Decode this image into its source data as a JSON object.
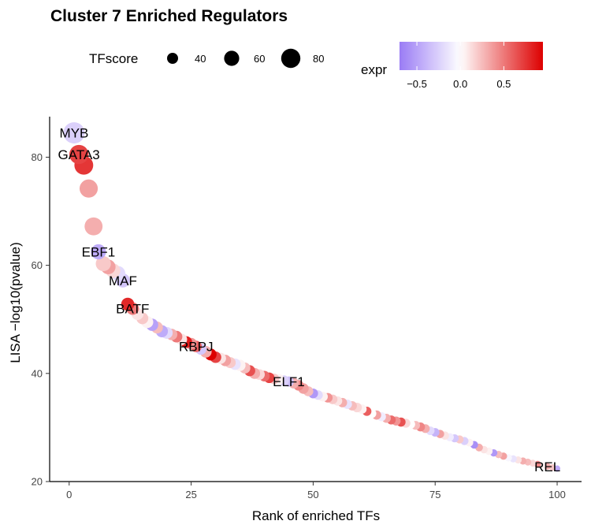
{
  "chart_data": {
    "type": "scatter",
    "title": "Cluster 7 Enriched Regulators",
    "xlabel": "Rank of enriched TFs",
    "ylabel": "LISA −log10(pvalue)",
    "xlim": [
      -4,
      105
    ],
    "ylim": [
      20,
      87.5
    ],
    "xticks": [
      0,
      25,
      50,
      75,
      100
    ],
    "yticks": [
      20,
      40,
      60,
      80
    ],
    "grid": false,
    "size_legend": {
      "title": "TFscore",
      "values": [
        40,
        60,
        80
      ]
    },
    "color_legend": {
      "title": "expr",
      "ticks": [
        -0.5,
        0.0,
        0.5
      ],
      "tick_labels": [
        "−0.5",
        "0.0",
        "0.5"
      ],
      "range": [
        -0.7,
        0.95
      ],
      "low_color": "#9a7cf5",
      "mid_color": "#ffffff",
      "high_color": "#dd0000"
    },
    "points": [
      {
        "rank": 1,
        "value": 84.5,
        "tfscore": 90,
        "expr": -0.25,
        "label": "MYB"
      },
      {
        "rank": 2,
        "value": 80.5,
        "tfscore": 80,
        "expr": 0.7,
        "label": "GATA3"
      },
      {
        "rank": 3,
        "value": 78.5,
        "tfscore": 78,
        "expr": 0.75
      },
      {
        "rank": 4,
        "value": 74.2,
        "tfscore": 75,
        "expr": 0.35
      },
      {
        "rank": 5,
        "value": 67.2,
        "tfscore": 74,
        "expr": 0.3
      },
      {
        "rank": 6,
        "value": 62.5,
        "tfscore": 60,
        "expr": -0.45,
        "label": "EBF1"
      },
      {
        "rank": 7,
        "value": 60.3,
        "tfscore": 60,
        "expr": 0.2
      },
      {
        "rank": 8,
        "value": 59.7,
        "tfscore": 58,
        "expr": 0.35
      },
      {
        "rank": 9,
        "value": 59.0,
        "tfscore": 57,
        "expr": 0.15
      },
      {
        "rank": 10,
        "value": 58.5,
        "tfscore": 58,
        "expr": -0.2
      },
      {
        "rank": 11,
        "value": 57.2,
        "tfscore": 55,
        "expr": -0.3,
        "label": "MAF"
      },
      {
        "rank": 12,
        "value": 52.8,
        "tfscore": 50,
        "expr": 0.8
      },
      {
        "rank": 13,
        "value": 52.0,
        "tfscore": 48,
        "expr": 0.5,
        "label": "BATF"
      },
      {
        "rank": 14,
        "value": 51.0,
        "tfscore": 45,
        "expr": 0.1
      },
      {
        "rank": 15,
        "value": 50.2,
        "tfscore": 44,
        "expr": 0.2
      },
      {
        "rank": 16,
        "value": 49.5,
        "tfscore": 45,
        "expr": 0.05
      },
      {
        "rank": 17,
        "value": 49.0,
        "tfscore": 46,
        "expr": -0.5
      },
      {
        "rank": 18,
        "value": 48.5,
        "tfscore": 44,
        "expr": 0.25
      },
      {
        "rank": 19,
        "value": 47.8,
        "tfscore": 45,
        "expr": -0.45
      },
      {
        "rank": 20,
        "value": 47.5,
        "tfscore": 44,
        "expr": -0.2
      },
      {
        "rank": 21,
        "value": 47.2,
        "tfscore": 42,
        "expr": 0.3
      },
      {
        "rank": 22,
        "value": 46.8,
        "tfscore": 43,
        "expr": 0.5
      },
      {
        "rank": 23,
        "value": 46.3,
        "tfscore": 42,
        "expr": 0.1
      },
      {
        "rank": 24,
        "value": 45.8,
        "tfscore": 43,
        "expr": 0.85
      },
      {
        "rank": 25,
        "value": 45.5,
        "tfscore": 43,
        "expr": 0.4
      },
      {
        "rank": 26,
        "value": 45.0,
        "tfscore": 42,
        "expr": 0.6,
        "label": "RBPJ"
      },
      {
        "rank": 27,
        "value": 44.5,
        "tfscore": 41,
        "expr": -0.3
      },
      {
        "rank": 28,
        "value": 44.0,
        "tfscore": 43,
        "expr": 0.3
      },
      {
        "rank": 29,
        "value": 43.5,
        "tfscore": 44,
        "expr": 0.95
      },
      {
        "rank": 30,
        "value": 43.0,
        "tfscore": 42,
        "expr": 0.7
      },
      {
        "rank": 31,
        "value": 42.8,
        "tfscore": 41,
        "expr": 0.1
      },
      {
        "rank": 32,
        "value": 42.4,
        "tfscore": 42,
        "expr": 0.35
      },
      {
        "rank": 33,
        "value": 42.0,
        "tfscore": 40,
        "expr": 0.2
      },
      {
        "rank": 34,
        "value": 41.7,
        "tfscore": 42,
        "expr": -0.15
      },
      {
        "rank": 35,
        "value": 41.5,
        "tfscore": 41,
        "expr": 0.05
      },
      {
        "rank": 36,
        "value": 41.0,
        "tfscore": 40,
        "expr": 0.25
      },
      {
        "rank": 37,
        "value": 40.5,
        "tfscore": 40,
        "expr": 0.65
      },
      {
        "rank": 38,
        "value": 40.0,
        "tfscore": 40,
        "expr": 0.3
      },
      {
        "rank": 39,
        "value": 39.8,
        "tfscore": 38,
        "expr": 0.15
      },
      {
        "rank": 40,
        "value": 39.5,
        "tfscore": 38,
        "expr": 0.55
      },
      {
        "rank": 41,
        "value": 39.2,
        "tfscore": 38,
        "expr": 0.7
      },
      {
        "rank": 42,
        "value": 39.0,
        "tfscore": 37,
        "expr": 0.2
      },
      {
        "rank": 43,
        "value": 38.9,
        "tfscore": 37,
        "expr": 0.05
      },
      {
        "rank": 44,
        "value": 38.7,
        "tfscore": 36,
        "expr": -0.25
      },
      {
        "rank": 45,
        "value": 38.5,
        "tfscore": 36,
        "expr": -0.35,
        "label": "ELF1"
      },
      {
        "rank": 46,
        "value": 38.2,
        "tfscore": 38,
        "expr": 0.3
      },
      {
        "rank": 47,
        "value": 37.8,
        "tfscore": 37,
        "expr": 0.45
      },
      {
        "rank": 48,
        "value": 37.2,
        "tfscore": 38,
        "expr": 0.35
      },
      {
        "rank": 49,
        "value": 36.7,
        "tfscore": 35,
        "expr": 0.25
      },
      {
        "rank": 50,
        "value": 36.3,
        "tfscore": 34,
        "expr": -0.55
      },
      {
        "rank": 51,
        "value": 36.0,
        "tfscore": 33,
        "expr": -0.2
      },
      {
        "rank": 52,
        "value": 35.7,
        "tfscore": 34,
        "expr": 0.05
      },
      {
        "rank": 53,
        "value": 35.5,
        "tfscore": 33,
        "expr": 0.4
      },
      {
        "rank": 54,
        "value": 35.2,
        "tfscore": 33,
        "expr": 0.2
      },
      {
        "rank": 55,
        "value": 34.9,
        "tfscore": 32,
        "expr": 0.1
      },
      {
        "rank": 56,
        "value": 34.6,
        "tfscore": 32,
        "expr": 0.3
      },
      {
        "rank": 57,
        "value": 34.3,
        "tfscore": 32,
        "expr": -0.15
      },
      {
        "rank": 58,
        "value": 34.0,
        "tfscore": 32,
        "expr": 0.25
      },
      {
        "rank": 59,
        "value": 33.7,
        "tfscore": 33,
        "expr": 0.15
      },
      {
        "rank": 60,
        "value": 33.4,
        "tfscore": 32,
        "expr": 0.05
      },
      {
        "rank": 61,
        "value": 33.0,
        "tfscore": 31,
        "expr": 0.6
      },
      {
        "rank": 62,
        "value": 32.6,
        "tfscore": 31,
        "expr": 0.0
      },
      {
        "rank": 63,
        "value": 32.3,
        "tfscore": 31,
        "expr": 0.35
      },
      {
        "rank": 64,
        "value": 32.0,
        "tfscore": 30,
        "expr": -0.1
      },
      {
        "rank": 65,
        "value": 31.7,
        "tfscore": 30,
        "expr": 0.3
      },
      {
        "rank": 66,
        "value": 31.4,
        "tfscore": 30,
        "expr": 0.55
      },
      {
        "rank": 67,
        "value": 31.2,
        "tfscore": 30,
        "expr": 0.4
      },
      {
        "rank": 68,
        "value": 31.0,
        "tfscore": 31,
        "expr": 0.65
      },
      {
        "rank": 69,
        "value": 30.8,
        "tfscore": 30,
        "expr": 0.15
      },
      {
        "rank": 70,
        "value": 30.6,
        "tfscore": 29,
        "expr": 0.0
      },
      {
        "rank": 71,
        "value": 30.4,
        "tfscore": 29,
        "expr": 0.25
      },
      {
        "rank": 72,
        "value": 30.1,
        "tfscore": 30,
        "expr": 0.45
      },
      {
        "rank": 73,
        "value": 29.8,
        "tfscore": 29,
        "expr": 0.3
      },
      {
        "rank": 74,
        "value": 29.4,
        "tfscore": 28,
        "expr": -0.2
      },
      {
        "rank": 75,
        "value": 29.1,
        "tfscore": 28,
        "expr": -0.4
      },
      {
        "rank": 76,
        "value": 28.8,
        "tfscore": 27,
        "expr": 0.35
      },
      {
        "rank": 77,
        "value": 28.5,
        "tfscore": 27,
        "expr": 0.1
      },
      {
        "rank": 78,
        "value": 28.2,
        "tfscore": 26,
        "expr": -0.1
      },
      {
        "rank": 79,
        "value": 28.0,
        "tfscore": 26,
        "expr": -0.3
      },
      {
        "rank": 80,
        "value": 27.8,
        "tfscore": 26,
        "expr": 0.2
      },
      {
        "rank": 81,
        "value": 27.5,
        "tfscore": 26,
        "expr": -0.25
      },
      {
        "rank": 82,
        "value": 27.2,
        "tfscore": 25,
        "expr": 0.05
      },
      {
        "rank": 83,
        "value": 26.8,
        "tfscore": 24,
        "expr": -0.6
      },
      {
        "rank": 84,
        "value": 26.3,
        "tfscore": 24,
        "expr": 0.3
      },
      {
        "rank": 85,
        "value": 25.9,
        "tfscore": 23,
        "expr": 0.1
      },
      {
        "rank": 86,
        "value": 25.6,
        "tfscore": 23,
        "expr": 0.05
      },
      {
        "rank": 87,
        "value": 25.3,
        "tfscore": 22,
        "expr": -0.55
      },
      {
        "rank": 88,
        "value": 25.0,
        "tfscore": 22,
        "expr": 0.25
      },
      {
        "rank": 89,
        "value": 24.7,
        "tfscore": 22,
        "expr": 0.35
      },
      {
        "rank": 90,
        "value": 24.4,
        "tfscore": 22,
        "expr": -0.05
      },
      {
        "rank": 91,
        "value": 24.2,
        "tfscore": 21,
        "expr": -0.15
      },
      {
        "rank": 92,
        "value": 24.0,
        "tfscore": 21,
        "expr": 0.1
      },
      {
        "rank": 93,
        "value": 23.8,
        "tfscore": 21,
        "expr": 0.3
      },
      {
        "rank": 94,
        "value": 23.6,
        "tfscore": 20,
        "expr": 0.25
      },
      {
        "rank": 95,
        "value": 23.4,
        "tfscore": 20,
        "expr": 0.15
      },
      {
        "rank": 96,
        "value": 23.2,
        "tfscore": 20,
        "expr": 0.45
      },
      {
        "rank": 97,
        "value": 23.0,
        "tfscore": 19,
        "expr": 0.05
      },
      {
        "rank": 98,
        "value": 22.8,
        "tfscore": 19,
        "expr": 0.3,
        "label": "REL"
      },
      {
        "rank": 99,
        "value": 22.6,
        "tfscore": 18,
        "expr": 0.2
      },
      {
        "rank": 100,
        "value": 22.4,
        "tfscore": 17,
        "expr": -0.45
      }
    ]
  }
}
